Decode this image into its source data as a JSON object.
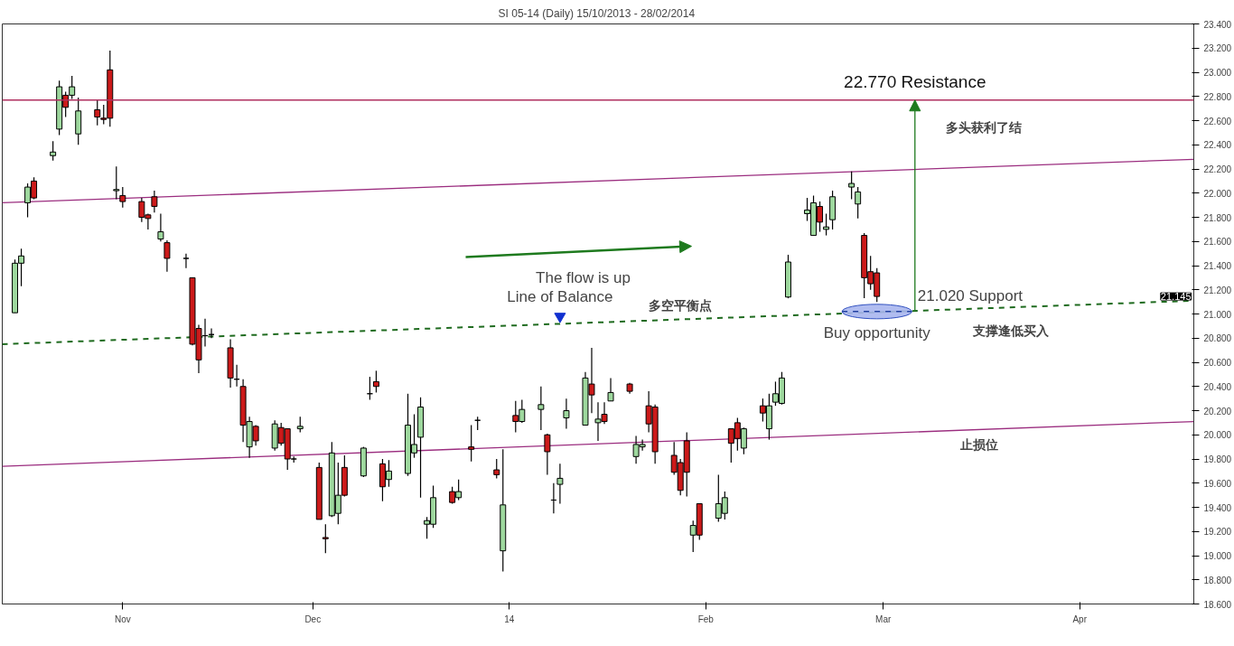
{
  "chart_data": {
    "type": "candlestick",
    "title": "SI 05-14 (Daily)  15/10/2013 - 28/02/2014",
    "x": [
      "2013-10-15",
      "2013-10-16",
      "2013-10-17",
      "2013-10-18",
      "2013-10-21",
      "2013-10-22",
      "2013-10-23",
      "2013-10-24",
      "2013-10-25",
      "2013-10-28",
      "2013-10-29",
      "2013-10-30",
      "2013-10-31",
      "2013-11-01",
      "2013-11-04",
      "2013-11-05",
      "2013-11-06",
      "2013-11-07",
      "2013-11-08",
      "2013-11-11",
      "2013-11-12",
      "2013-11-13",
      "2013-11-14",
      "2013-11-15",
      "2013-11-18",
      "2013-11-19",
      "2013-11-20",
      "2013-11-21",
      "2013-11-22",
      "2013-11-25",
      "2013-11-26",
      "2013-11-27",
      "2013-11-28",
      "2013-11-29",
      "2013-12-02",
      "2013-12-03",
      "2013-12-04",
      "2013-12-05",
      "2013-12-06",
      "2013-12-09",
      "2013-12-10",
      "2013-12-11",
      "2013-12-12",
      "2013-12-13",
      "2013-12-16",
      "2013-12-17",
      "2013-12-18",
      "2013-12-19",
      "2013-12-20",
      "2013-12-23",
      "2013-12-24",
      "2013-12-26",
      "2013-12-27",
      "2013-12-30",
      "2013-12-31",
      "2014-01-02",
      "2014-01-03",
      "2014-01-06",
      "2014-01-07",
      "2014-01-08",
      "2014-01-09",
      "2014-01-10",
      "2014-01-13",
      "2014-01-14",
      "2014-01-15",
      "2014-01-16",
      "2014-01-17",
      "2014-01-20",
      "2014-01-21",
      "2014-01-22",
      "2014-01-23",
      "2014-01-24",
      "2014-01-27",
      "2014-01-28",
      "2014-01-29",
      "2014-01-30",
      "2014-01-31",
      "2014-02-03",
      "2014-02-04",
      "2014-02-05",
      "2014-02-06",
      "2014-02-07",
      "2014-02-10",
      "2014-02-11",
      "2014-02-12",
      "2014-02-13",
      "2014-02-14",
      "2014-02-17",
      "2014-02-18",
      "2014-02-19",
      "2014-02-20",
      "2014-02-21",
      "2014-02-24",
      "2014-02-25",
      "2014-02-26",
      "2014-02-27",
      "2014-02-28"
    ],
    "ohlc": [
      [
        21.01,
        21.45,
        21.01,
        21.42
      ],
      [
        21.42,
        21.54,
        21.23,
        21.48
      ],
      [
        21.92,
        22.08,
        21.8,
        22.05
      ],
      [
        22.1,
        22.13,
        21.95,
        21.96
      ],
      [
        22.31,
        22.43,
        22.27,
        22.34
      ],
      [
        22.53,
        22.93,
        22.48,
        22.88
      ],
      [
        22.81,
        22.84,
        22.63,
        22.71
      ],
      [
        22.81,
        22.97,
        22.78,
        22.88
      ],
      [
        22.49,
        22.79,
        22.4,
        22.68
      ],
      [
        22.69,
        22.77,
        22.56,
        22.63
      ],
      [
        22.62,
        22.73,
        22.57,
        22.61
      ],
      [
        23.02,
        23.18,
        22.55,
        22.62
      ],
      [
        22.02,
        22.22,
        21.95,
        22.03
      ],
      [
        21.98,
        22.05,
        21.88,
        21.93
      ],
      [
        21.93,
        21.96,
        21.76,
        21.8
      ],
      [
        21.82,
        21.83,
        21.7,
        21.79
      ],
      [
        21.97,
        22.02,
        21.84,
        21.89
      ],
      [
        21.62,
        21.83,
        21.6,
        21.68
      ],
      [
        21.59,
        21.61,
        21.35,
        21.46
      ],
      [
        21.46,
        21.5,
        21.38,
        21.46
      ],
      [
        21.3,
        21.3,
        20.74,
        20.75
      ],
      [
        20.88,
        20.91,
        20.51,
        20.62
      ],
      [
        20.82,
        20.96,
        20.73,
        20.82
      ],
      [
        20.83,
        20.88,
        20.8,
        20.83
      ],
      [
        20.72,
        20.79,
        20.39,
        20.47
      ],
      [
        20.46,
        20.58,
        20.4,
        20.46
      ],
      [
        20.4,
        20.46,
        19.94,
        20.08
      ],
      [
        19.9,
        20.15,
        19.81,
        20.11
      ],
      [
        20.07,
        20.08,
        19.91,
        19.95
      ],
      [
        19.89,
        20.12,
        19.87,
        20.09
      ],
      [
        20.06,
        20.1,
        19.91,
        19.93
      ],
      [
        20.05,
        20.05,
        19.71,
        19.8
      ],
      [
        19.8,
        19.82,
        19.77,
        19.8
      ],
      [
        20.05,
        20.15,
        20.02,
        20.07
      ],
      [
        19.73,
        19.77,
        19.3,
        19.3
      ],
      [
        19.15,
        19.26,
        19.02,
        19.14
      ],
      [
        19.33,
        19.94,
        19.32,
        19.85
      ],
      [
        19.35,
        19.77,
        19.26,
        19.5
      ],
      [
        19.73,
        19.83,
        19.49,
        19.5
      ],
      [
        19.66,
        19.9,
        19.65,
        19.89
      ],
      [
        20.34,
        20.48,
        20.29,
        20.34
      ],
      [
        20.44,
        20.53,
        20.35,
        20.4
      ],
      [
        19.76,
        19.8,
        19.45,
        19.57
      ],
      [
        19.63,
        19.79,
        19.57,
        19.7
      ],
      [
        19.68,
        20.34,
        19.66,
        20.08
      ],
      [
        19.85,
        20.17,
        19.81,
        19.92
      ],
      [
        19.98,
        20.31,
        19.48,
        20.23
      ],
      [
        19.26,
        19.32,
        19.14,
        19.29
      ],
      [
        19.26,
        19.58,
        19.23,
        19.48
      ],
      [
        19.53,
        19.57,
        19.43,
        19.44
      ],
      [
        19.48,
        19.63,
        19.46,
        19.53
      ],
      [
        19.9,
        20.08,
        19.78,
        19.88
      ],
      [
        20.12,
        20.15,
        20.04,
        20.12
      ],
      [
        19.71,
        19.8,
        19.64,
        19.67
      ],
      [
        19.04,
        19.88,
        18.87,
        19.42
      ],
      [
        20.16,
        20.28,
        20.02,
        20.11
      ],
      [
        20.11,
        20.29,
        20.1,
        20.21
      ],
      [
        20.21,
        20.4,
        20.04,
        20.25
      ],
      [
        20.0,
        20.01,
        19.67,
        19.86
      ],
      [
        19.46,
        19.6,
        19.35,
        19.46
      ],
      [
        19.59,
        19.76,
        19.43,
        19.64
      ],
      [
        20.14,
        20.3,
        20.05,
        20.2
      ],
      [
        20.08,
        20.52,
        20.08,
        20.47
      ],
      [
        20.42,
        20.72,
        20.18,
        20.33
      ],
      [
        20.1,
        20.27,
        19.95,
        20.13
      ],
      [
        20.17,
        20.27,
        20.09,
        20.11
      ],
      [
        20.28,
        20.47,
        20.28,
        20.35
      ],
      [
        20.42,
        20.43,
        20.34,
        20.36
      ],
      [
        19.82,
        19.99,
        19.76,
        19.92
      ],
      [
        19.9,
        19.96,
        19.87,
        19.92
      ],
      [
        20.24,
        20.36,
        20.02,
        20.09
      ],
      [
        20.23,
        20.25,
        19.76,
        19.86
      ],
      [
        19.83,
        19.94,
        19.67,
        19.69
      ],
      [
        19.77,
        19.8,
        19.5,
        19.54
      ],
      [
        19.95,
        20.02,
        19.49,
        19.69
      ],
      [
        19.17,
        19.29,
        19.03,
        19.25
      ],
      [
        19.43,
        19.43,
        19.13,
        19.17
      ],
      [
        19.31,
        19.67,
        19.28,
        19.43
      ],
      [
        19.35,
        19.53,
        19.3,
        19.48
      ],
      [
        20.05,
        20.05,
        19.77,
        19.93
      ],
      [
        20.1,
        20.14,
        19.87,
        19.97
      ],
      [
        19.89,
        20.06,
        19.84,
        20.05
      ],
      [
        20.24,
        20.3,
        20.11,
        20.18
      ],
      [
        20.05,
        20.34,
        19.96,
        20.24
      ],
      [
        20.27,
        20.44,
        20.24,
        20.34
      ],
      [
        20.26,
        20.52,
        20.25,
        20.47
      ],
      [
        21.14,
        21.49,
        21.13,
        21.43
      ],
      [
        21.83,
        21.96,
        21.77,
        21.86
      ],
      [
        21.65,
        21.98,
        21.65,
        21.92
      ],
      [
        21.89,
        21.93,
        21.68,
        21.76
      ],
      [
        21.7,
        21.83,
        21.65,
        21.72
      ],
      [
        21.78,
        22.02,
        21.7,
        21.97
      ],
      [
        22.05,
        22.18,
        21.95,
        22.08
      ],
      [
        21.91,
        22.05,
        21.79,
        22.01
      ],
      [
        21.65,
        21.67,
        21.13,
        21.3
      ],
      [
        21.35,
        21.48,
        21.2,
        21.25
      ],
      [
        21.34,
        21.38,
        21.1,
        21.145
      ]
    ],
    "colors": [
      "#9ed89e",
      "#9ed89e",
      "#9ed89e",
      "#cc1a1a",
      "#9ed89e",
      "#9ed89e",
      "#cc1a1a",
      "#9ed89e",
      "#9ed89e",
      "#cc1a1a",
      "#cc1a1a",
      "#cc1a1a",
      "#9ed89e",
      "#cc1a1a",
      "#cc1a1a",
      "#cc1a1a",
      "#cc1a1a",
      "#9ed89e",
      "#cc1a1a",
      "#000000",
      "#cc1a1a",
      "#cc1a1a",
      "#000000",
      "#000000",
      "#cc1a1a",
      "#000000",
      "#cc1a1a",
      "#9ed89e",
      "#cc1a1a",
      "#9ed89e",
      "#cc1a1a",
      "#cc1a1a",
      "#000000",
      "#9ed89e",
      "#cc1a1a",
      "#cc1a1a",
      "#9ed89e",
      "#9ed89e",
      "#cc1a1a",
      "#9ed89e",
      "#000000",
      "#cc1a1a",
      "#cc1a1a",
      "#9ed89e",
      "#9ed89e",
      "#9ed89e",
      "#9ed89e",
      "#9ed89e",
      "#9ed89e",
      "#cc1a1a",
      "#9ed89e",
      "#cc1a1a",
      "#000000",
      "#cc1a1a",
      "#9ed89e",
      "#cc1a1a",
      "#9ed89e",
      "#9ed89e",
      "#cc1a1a",
      "#000000",
      "#9ed89e",
      "#9ed89e",
      "#9ed89e",
      "#cc1a1a",
      "#9ed89e",
      "#cc1a1a",
      "#9ed89e",
      "#cc1a1a",
      "#9ed89e",
      "#9ed89e",
      "#cc1a1a",
      "#cc1a1a",
      "#cc1a1a",
      "#cc1a1a",
      "#cc1a1a",
      "#9ed89e",
      "#cc1a1a",
      "#9ed89e",
      "#9ed89e",
      "#cc1a1a",
      "#cc1a1a",
      "#9ed89e",
      "#cc1a1a",
      "#9ed89e",
      "#9ed89e",
      "#9ed89e",
      "#9ed89e",
      "#9ed89e",
      "#9ed89e",
      "#cc1a1a",
      "#9ed89e",
      "#9ed89e",
      "#9ed89e",
      "#9ed89e",
      "#cc1a1a",
      "#cc1a1a",
      "#cc1a1a"
    ],
    "series": [
      {
        "type": "line",
        "x": [
          "2013-10-13",
          "2014-04-19"
        ],
        "values": [
          21.92,
          22.28
        ],
        "color": "#9b2d7f",
        "line_style": "solid"
      },
      {
        "type": "line",
        "x": [
          "2013-10-13",
          "2014-04-19"
        ],
        "values": [
          19.74,
          20.11
        ],
        "color": "#9b2d7f",
        "line_style": "solid"
      },
      {
        "type": "line",
        "x": [
          "2013-10-13",
          "2014-04-19"
        ],
        "values": [
          20.75,
          21.11
        ],
        "color": "#1f6b1f",
        "line_style": "dashed"
      }
    ],
    "ref_lines": [
      {
        "axis": "y",
        "value": 22.77,
        "color": "#b03060"
      }
    ],
    "annotations": [
      {
        "text": "22.770 Resistance",
        "x": "2014-03-06",
        "y": 22.77
      },
      {
        "text": "21.020 Support",
        "x": "2014-03-06",
        "y": 21.02
      },
      {
        "text": "Buy opportunity",
        "x": "2014-02-28",
        "y": 21.02
      },
      "The flow is up",
      {
        "text": "Line of Balance",
        "x": "2014-01-09",
        "y": 20.98
      },
      "多空平衡点",
      "多头获利了结",
      "支撑逢低买入",
      "止损位",
      "21.145"
    ],
    "xlim": [
      "2013-10-13",
      "2014-04-19"
    ],
    "xticks": [
      {
        "value": "2013-11-01",
        "label": "Nov"
      },
      {
        "value": "2013-12-01",
        "label": "Dec"
      },
      {
        "value": "2014-01-01",
        "label": "14"
      },
      {
        "value": "2014-02-01",
        "label": "Feb"
      },
      {
        "value": "2014-03-01",
        "label": "Mar"
      },
      {
        "value": "2014-04-01",
        "label": "Apr"
      }
    ],
    "ylim": [
      18.6,
      23.4
    ],
    "yticks": [
      {
        "value": 18.6,
        "label": "18.600"
      },
      {
        "value": 18.8,
        "label": "18.800"
      },
      {
        "value": 19.0,
        "label": "19.000"
      },
      {
        "value": 19.2,
        "label": "19.200"
      },
      {
        "value": 19.4,
        "label": "19.400"
      },
      {
        "value": 19.6,
        "label": "19.600"
      },
      {
        "value": 19.8,
        "label": "19.800"
      },
      {
        "value": 20.0,
        "label": "20.000"
      },
      {
        "value": 20.2,
        "label": "20.200"
      },
      {
        "value": 20.4,
        "label": "20.400"
      },
      {
        "value": 20.6,
        "label": "20.600"
      },
      {
        "value": 20.8,
        "label": "20.800"
      },
      {
        "value": 21.0,
        "label": "21.000"
      },
      {
        "value": 21.2,
        "label": "21.200"
      },
      {
        "value": 21.4,
        "label": "21.400"
      },
      {
        "value": 21.6,
        "label": "21.600"
      },
      {
        "value": 21.8,
        "label": "21.800"
      },
      {
        "value": 22.0,
        "label": "22.000"
      },
      {
        "value": 22.2,
        "label": "22.200"
      },
      {
        "value": 22.4,
        "label": "22.400"
      },
      {
        "value": 22.6,
        "label": "22.600"
      },
      {
        "value": 22.8,
        "label": "22.800"
      },
      {
        "value": 23.0,
        "label": "23.000"
      },
      {
        "value": 23.2,
        "label": "23.200"
      },
      {
        "value": 23.4,
        "label": "23.400"
      }
    ],
    "grid": false
  }
}
